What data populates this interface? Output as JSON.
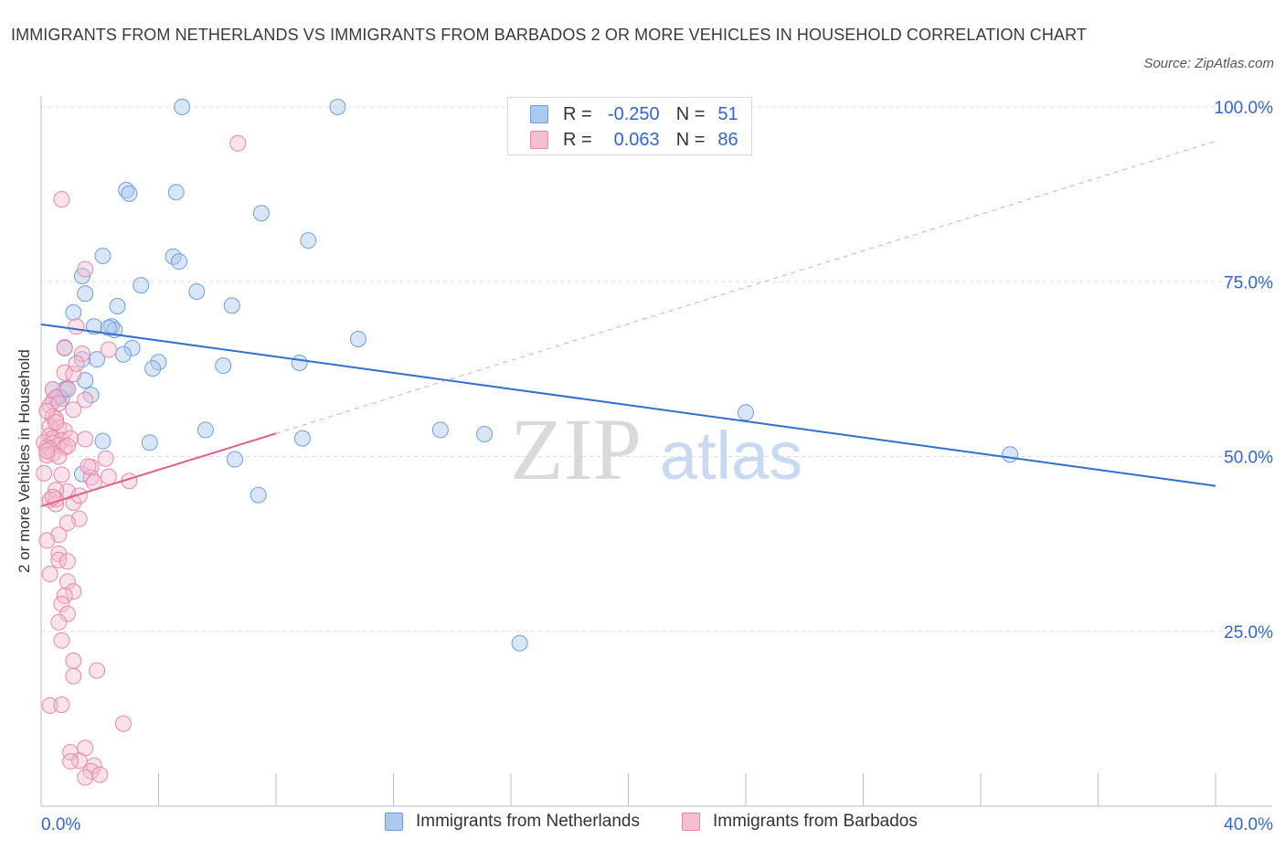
{
  "header": {
    "title": "IMMIGRANTS FROM NETHERLANDS VS IMMIGRANTS FROM BARBADOS 2 OR MORE VEHICLES IN HOUSEHOLD CORRELATION CHART",
    "source": "Source: ZipAtlas.com"
  },
  "watermark": {
    "zip": "ZIP",
    "atlas": "atlas"
  },
  "legend": {
    "rows": [
      {
        "r_label": "R =",
        "r_value": "-0.250",
        "n_label": "N =",
        "n_value": "51",
        "color": "#aac8f0",
        "border": "#6f9ee0"
      },
      {
        "r_label": "R =",
        "r_value": "0.063",
        "n_label": "N =",
        "n_value": "86",
        "color": "#f7bdd0",
        "border": "#e58aa8"
      }
    ]
  },
  "bottom_legend": [
    "Immigrants from Netherlands",
    "Immigrants from Barbados"
  ],
  "chart_data": {
    "type": "scatter",
    "title": "IMMIGRANTS FROM NETHERLANDS VS IMMIGRANTS FROM BARBADOS 2 OR MORE VEHICLES IN HOUSEHOLD CORRELATION CHART",
    "xlabel": "",
    "ylabel": "2 or more Vehicles in Household",
    "xlim": [
      0,
      40
    ],
    "ylim": [
      0,
      100
    ],
    "x_tick_labels": [
      "0.0%",
      "40.0%"
    ],
    "y_tick_labels": [
      "25.0%",
      "50.0%",
      "75.0%",
      "100.0%"
    ],
    "y_ticks": [
      25,
      50,
      75,
      100
    ],
    "colors": {
      "netherlands": "#6f9ee0",
      "barbados": "#e58aa8",
      "axis_label": "#3366cc"
    },
    "series": [
      {
        "name": "Immigrants from Netherlands",
        "color": "#6f9ee0",
        "trend": {
          "type": "solid",
          "x": [
            0,
            40
          ],
          "y": [
            68.9,
            45.8
          ]
        },
        "points": [
          [
            4.8,
            100
          ],
          [
            10.1,
            100
          ],
          [
            2.9,
            88.1
          ],
          [
            3.0,
            87.6
          ],
          [
            4.6,
            87.8
          ],
          [
            7.5,
            84.8
          ],
          [
            9.1,
            80.9
          ],
          [
            2.1,
            78.7
          ],
          [
            4.5,
            78.6
          ],
          [
            4.7,
            77.9
          ],
          [
            1.4,
            75.8
          ],
          [
            3.4,
            74.5
          ],
          [
            5.3,
            73.6
          ],
          [
            1.5,
            73.3
          ],
          [
            6.5,
            71.6
          ],
          [
            2.6,
            71.5
          ],
          [
            1.1,
            70.6
          ],
          [
            1.8,
            68.6
          ],
          [
            2.4,
            68.6
          ],
          [
            2.5,
            68.1
          ],
          [
            10.8,
            66.8
          ],
          [
            0.8,
            65.6
          ],
          [
            3.1,
            65.5
          ],
          [
            2.8,
            64.6
          ],
          [
            1.9,
            63.9
          ],
          [
            1.4,
            63.9
          ],
          [
            4.0,
            63.5
          ],
          [
            8.8,
            63.4
          ],
          [
            6.2,
            63.0
          ],
          [
            3.8,
            62.6
          ],
          [
            1.5,
            60.9
          ],
          [
            0.8,
            59.6
          ],
          [
            0.4,
            59.6
          ],
          [
            1.7,
            58.8
          ],
          [
            0.7,
            58.3
          ],
          [
            0.4,
            57.9
          ],
          [
            24.0,
            56.3
          ],
          [
            13.6,
            53.8
          ],
          [
            5.6,
            53.8
          ],
          [
            15.1,
            53.2
          ],
          [
            8.9,
            52.6
          ],
          [
            2.1,
            52.2
          ],
          [
            3.7,
            52.0
          ],
          [
            33.0,
            50.3
          ],
          [
            6.6,
            49.6
          ],
          [
            1.4,
            47.5
          ],
          [
            7.4,
            44.5
          ],
          [
            16.3,
            23.3
          ],
          [
            0.9,
            59.7
          ],
          [
            2.3,
            68.4
          ],
          [
            0.6,
            58.6
          ]
        ]
      },
      {
        "name": "Immigrants from Barbados",
        "color": "#e58aa8",
        "trend": {
          "solid": {
            "x": [
              0,
              8
            ],
            "y": [
              42.9,
              53.3
            ]
          },
          "dashed": {
            "x": [
              8,
              40
            ],
            "y": [
              53.3,
              95.1
            ]
          }
        },
        "points": [
          [
            6.7,
            94.8
          ],
          [
            0.7,
            86.8
          ],
          [
            1.5,
            76.8
          ],
          [
            1.2,
            68.6
          ],
          [
            0.8,
            65.5
          ],
          [
            1.4,
            64.7
          ],
          [
            2.3,
            65.3
          ],
          [
            0.8,
            62.0
          ],
          [
            1.1,
            61.8
          ],
          [
            1.2,
            63.3
          ],
          [
            0.9,
            59.6
          ],
          [
            1.5,
            58.1
          ],
          [
            0.4,
            59.6
          ],
          [
            0.5,
            58.4
          ],
          [
            0.3,
            57.3
          ],
          [
            0.6,
            57.6
          ],
          [
            1.1,
            56.7
          ],
          [
            0.4,
            55.7
          ],
          [
            0.5,
            55.4
          ],
          [
            0.3,
            54.3
          ],
          [
            0.6,
            54.1
          ],
          [
            0.8,
            53.7
          ],
          [
            0.3,
            53.0
          ],
          [
            0.4,
            52.6
          ],
          [
            0.7,
            52.3
          ],
          [
            0.1,
            52.0
          ],
          [
            0.4,
            51.9
          ],
          [
            0.6,
            51.6
          ],
          [
            0.8,
            51.3
          ],
          [
            0.2,
            51.3
          ],
          [
            0.3,
            51.1
          ],
          [
            0.4,
            50.4
          ],
          [
            0.2,
            50.2
          ],
          [
            0.6,
            50.0
          ],
          [
            1.0,
            52.6
          ],
          [
            2.2,
            49.7
          ],
          [
            1.7,
            48.5
          ],
          [
            0.7,
            47.4
          ],
          [
            1.7,
            47.0
          ],
          [
            2.3,
            47.1
          ],
          [
            3.0,
            46.5
          ],
          [
            0.9,
            45.0
          ],
          [
            0.5,
            45.2
          ],
          [
            0.3,
            43.8
          ],
          [
            1.1,
            43.4
          ],
          [
            0.5,
            43.2
          ],
          [
            0.5,
            43.9
          ],
          [
            1.3,
            41.1
          ],
          [
            0.9,
            40.5
          ],
          [
            0.6,
            38.8
          ],
          [
            0.6,
            36.1
          ],
          [
            0.6,
            35.2
          ],
          [
            0.9,
            35.0
          ],
          [
            0.3,
            33.2
          ],
          [
            0.9,
            32.1
          ],
          [
            1.1,
            30.7
          ],
          [
            0.8,
            30.1
          ],
          [
            0.7,
            28.9
          ],
          [
            0.9,
            27.5
          ],
          [
            0.6,
            26.3
          ],
          [
            0.7,
            23.7
          ],
          [
            1.1,
            20.8
          ],
          [
            1.9,
            19.4
          ],
          [
            1.1,
            18.6
          ],
          [
            0.3,
            14.4
          ],
          [
            0.7,
            14.5
          ],
          [
            2.8,
            11.8
          ],
          [
            1.5,
            8.3
          ],
          [
            1.0,
            7.7
          ],
          [
            1.3,
            6.5
          ],
          [
            1.0,
            6.4
          ],
          [
            1.8,
            5.8
          ],
          [
            1.7,
            5.0
          ],
          [
            1.5,
            4.1
          ],
          [
            2.0,
            4.5
          ],
          [
            0.2,
            56.5
          ],
          [
            0.9,
            51.5
          ],
          [
            1.5,
            52.5
          ],
          [
            0.4,
            44.2
          ],
          [
            0.2,
            38.0
          ],
          [
            1.6,
            48.6
          ],
          [
            1.8,
            46.3
          ],
          [
            0.1,
            47.6
          ],
          [
            0.5,
            54.9
          ],
          [
            1.3,
            44.4
          ],
          [
            0.2,
            50.8
          ]
        ]
      }
    ]
  }
}
